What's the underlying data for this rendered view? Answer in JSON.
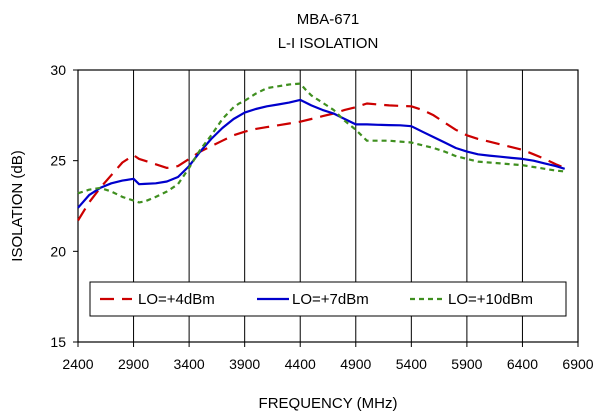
{
  "chart_data": {
    "type": "line",
    "title": "MBA-671",
    "subtitle": "L-I ISOLATION",
    "xlabel": "FREQUENCY (MHz)",
    "ylabel": "ISOLATION (dB)",
    "xlim": [
      2400,
      6900
    ],
    "ylim": [
      15,
      30
    ],
    "x_ticks": [
      2400,
      2900,
      3400,
      3900,
      4400,
      4900,
      5400,
      5900,
      6400,
      6900
    ],
    "y_ticks": [
      15,
      20,
      25,
      30
    ],
    "grid": "vertical-lines",
    "legend_position": "bottom-inside",
    "series": [
      {
        "name": "LO=+4dBm",
        "color": "#cc0000",
        "dash": "long-dash",
        "x": [
          2400,
          2500,
          2600,
          2700,
          2800,
          2900,
          2950,
          3000,
          3100,
          3200,
          3300,
          3400,
          3500,
          3600,
          3700,
          3800,
          3900,
          4000,
          4100,
          4200,
          4300,
          4400,
          4500,
          4600,
          4700,
          4800,
          4900,
          5000,
          5100,
          5200,
          5300,
          5400,
          5500,
          5600,
          5700,
          5800,
          5900,
          6000,
          6100,
          6200,
          6300,
          6400,
          6500,
          6600,
          6700,
          6780
        ],
        "y": [
          21.7,
          22.7,
          23.5,
          24.2,
          24.9,
          25.3,
          25.1,
          25.0,
          24.8,
          24.6,
          24.7,
          25.1,
          25.5,
          25.8,
          26.1,
          26.4,
          26.6,
          26.75,
          26.85,
          26.95,
          27.05,
          27.15,
          27.3,
          27.45,
          27.6,
          27.8,
          27.95,
          28.15,
          28.1,
          28.05,
          28.02,
          28.0,
          27.8,
          27.5,
          27.1,
          26.7,
          26.4,
          26.2,
          26.05,
          25.9,
          25.75,
          25.6,
          25.35,
          25.1,
          24.8,
          24.6
        ]
      },
      {
        "name": "LO=+7dBm",
        "color": "#0000cc",
        "dash": "solid",
        "x": [
          2400,
          2500,
          2600,
          2700,
          2800,
          2900,
          2950,
          3000,
          3100,
          3200,
          3300,
          3400,
          3500,
          3600,
          3700,
          3800,
          3900,
          4000,
          4100,
          4200,
          4300,
          4400,
          4450,
          4500,
          4600,
          4700,
          4800,
          4900,
          5000,
          5100,
          5200,
          5300,
          5400,
          5500,
          5600,
          5700,
          5800,
          5900,
          6000,
          6100,
          6200,
          6300,
          6400,
          6500,
          6600,
          6700,
          6780
        ],
        "y": [
          22.4,
          23.1,
          23.5,
          23.75,
          23.9,
          24.0,
          23.7,
          23.72,
          23.75,
          23.85,
          24.1,
          24.7,
          25.5,
          26.2,
          26.8,
          27.3,
          27.65,
          27.85,
          28.0,
          28.1,
          28.2,
          28.35,
          28.2,
          28.05,
          27.8,
          27.6,
          27.3,
          27.0,
          27.0,
          26.98,
          26.96,
          26.95,
          26.9,
          26.6,
          26.3,
          26.0,
          25.7,
          25.5,
          25.35,
          25.28,
          25.22,
          25.15,
          25.1,
          25.0,
          24.85,
          24.7,
          24.55
        ]
      },
      {
        "name": "LO=+10dBm",
        "color": "#3f8f1f",
        "dash": "short-dash",
        "x": [
          2400,
          2500,
          2600,
          2700,
          2800,
          2900,
          2950,
          3000,
          3100,
          3200,
          3300,
          3400,
          3500,
          3600,
          3700,
          3800,
          3850,
          3900,
          4000,
          4100,
          4200,
          4300,
          4400,
          4450,
          4500,
          4600,
          4700,
          4800,
          4900,
          5000,
          5100,
          5200,
          5300,
          5400,
          5500,
          5600,
          5700,
          5800,
          5900,
          6000,
          6100,
          6200,
          6300,
          6400,
          6500,
          6600,
          6700,
          6780
        ],
        "y": [
          23.2,
          23.4,
          23.5,
          23.3,
          23.0,
          22.8,
          22.7,
          22.75,
          23.0,
          23.3,
          23.7,
          24.6,
          25.6,
          26.4,
          27.3,
          27.95,
          28.15,
          28.3,
          28.7,
          29.0,
          29.1,
          29.2,
          29.25,
          28.9,
          28.6,
          28.2,
          27.8,
          27.2,
          26.7,
          26.1,
          26.1,
          26.1,
          26.05,
          26.0,
          25.85,
          25.7,
          25.5,
          25.25,
          25.1,
          24.95,
          24.9,
          24.85,
          24.8,
          24.75,
          24.65,
          24.55,
          24.45,
          24.4
        ]
      }
    ]
  }
}
